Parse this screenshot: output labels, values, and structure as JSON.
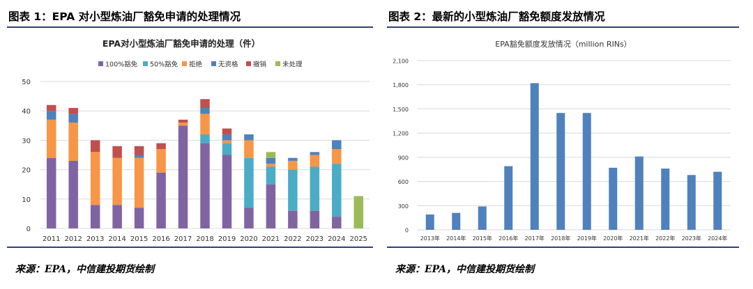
{
  "left": {
    "header_title": "图表 1：EPA 对小型炼油厂豁免申请的处理情况",
    "source": "来源：EPA，中信建投期货绘制"
  },
  "right": {
    "header_title": "图表 2：最新的小型炼油厂豁免额度发放情况",
    "source": "来源：EPA，中信建投期货绘制"
  },
  "chart_data": [
    {
      "type": "bar",
      "stacked": true,
      "title": "EPA对小型炼油厂豁免申请的处理（件）",
      "xlabel": "",
      "ylabel": "",
      "ylim": [
        0,
        50
      ],
      "yticks": [
        0,
        10,
        20,
        30,
        40,
        50
      ],
      "grid": true,
      "legend_position": "top",
      "categories": [
        "2011",
        "2012",
        "2013",
        "2014",
        "2015",
        "2016",
        "2017",
        "2018",
        "2019",
        "2020",
        "2021",
        "2022",
        "2023",
        "2024",
        "2025"
      ],
      "series": [
        {
          "name": "100%豁免",
          "color": "#8064a2",
          "values": [
            24,
            23,
            8,
            8,
            7,
            19,
            35,
            29,
            25,
            7,
            15,
            6,
            6,
            4,
            0
          ]
        },
        {
          "name": "50%豁免",
          "color": "#4bacc6",
          "values": [
            0,
            0,
            0,
            0,
            0,
            0,
            0,
            3,
            4,
            17,
            6,
            14,
            15,
            18,
            0
          ]
        },
        {
          "name": "拒绝",
          "color": "#f79646",
          "values": [
            13,
            13,
            18,
            16,
            17,
            8,
            1,
            7,
            1,
            6,
            1,
            3,
            4,
            5,
            0
          ]
        },
        {
          "name": "无资格",
          "color": "#4f81bd",
          "values": [
            3,
            3,
            0,
            0,
            1,
            0,
            0,
            2,
            2,
            2,
            2,
            1,
            1,
            3,
            0
          ]
        },
        {
          "name": "撤销",
          "color": "#c0504d",
          "values": [
            2,
            2,
            4,
            4,
            3,
            2,
            1,
            3,
            2,
            0,
            0,
            0,
            0,
            0,
            0
          ]
        },
        {
          "name": "未处理",
          "color": "#9bbb59",
          "values": [
            0,
            0,
            0,
            0,
            0,
            0,
            0,
            0,
            0,
            0,
            2,
            0,
            0,
            0,
            11
          ]
        }
      ]
    },
    {
      "type": "bar",
      "title": "EPA豁免额度发放情况（million RINs）",
      "xlabel": "",
      "ylabel": "",
      "ylim": [
        0,
        2100
      ],
      "yticks": [
        0,
        300,
        600,
        900,
        1200,
        1500,
        1800,
        2100
      ],
      "ytick_labels": [
        "0",
        "300",
        "600",
        "900",
        "1,200",
        "1,500",
        "1,800",
        "2,100"
      ],
      "grid": true,
      "categories": [
        "2013年",
        "2014年",
        "2015年",
        "2016年",
        "2017年",
        "2018年",
        "2019年",
        "2020年",
        "2021年",
        "2022年",
        "2023年",
        "2024年"
      ],
      "series": [
        {
          "color": "#4f81bd",
          "values": [
            190,
            210,
            290,
            790,
            1820,
            1450,
            1450,
            770,
            910,
            760,
            680,
            720
          ]
        }
      ]
    }
  ]
}
